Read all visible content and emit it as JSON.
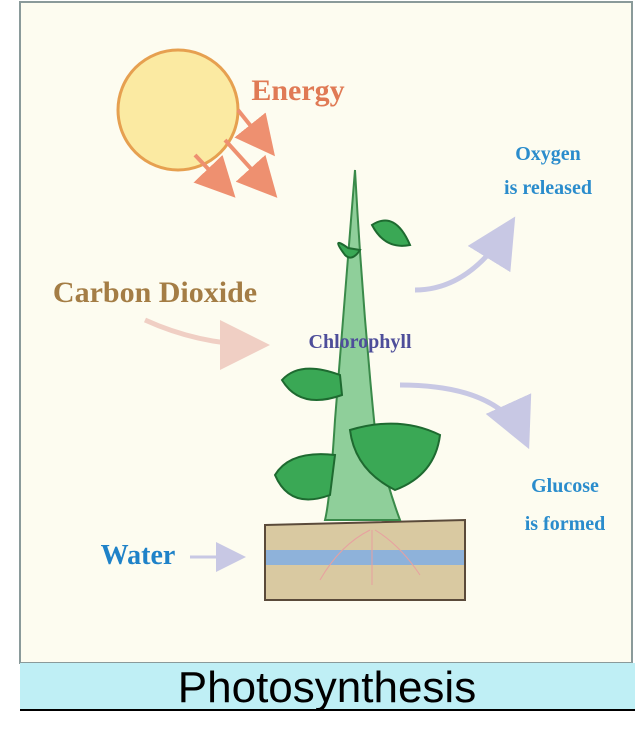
{
  "diagram": {
    "title": "Photosynthesis",
    "labels": {
      "energy": "Energy",
      "oxygen": [
        "Oxygen",
        "is released"
      ],
      "carbon_dioxide": "Carbon Dioxide",
      "chlorophyll": "Chlorophyll",
      "glucose": [
        "Glucose",
        "is formed"
      ],
      "water": "Water"
    }
  }
}
